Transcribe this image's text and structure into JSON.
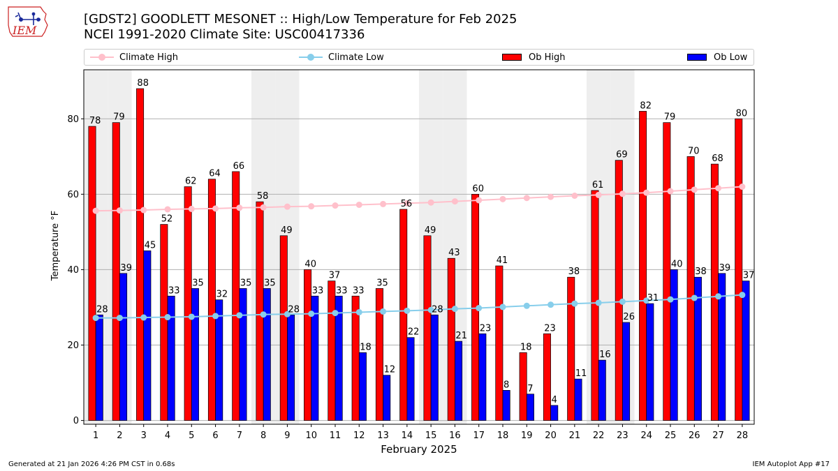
{
  "header": {
    "title_line1": "[GDST2] GOODLETT MESONET :: High/Low Temperature for Feb 2025",
    "title_line2": "NCEI 1991-2020 Climate Site: USC00417336"
  },
  "logo": {
    "text": "IEM"
  },
  "legend": {
    "climate_high": "Climate High",
    "climate_low": "Climate Low",
    "ob_high": "Ob High",
    "ob_low": "Ob Low"
  },
  "colors": {
    "ob_high": "#ff0000",
    "ob_low": "#0000ff",
    "climate_high": "#ffc0cb",
    "climate_low": "#87ceeb",
    "weekend_shade": "#eeeeee",
    "grid": "#b0b0b0"
  },
  "chart_data": {
    "type": "bar",
    "xlabel": "February 2025",
    "ylabel": "Temperature °F",
    "ylim": [
      -1,
      93
    ],
    "yticks": [
      0,
      20,
      40,
      60,
      80
    ],
    "grid": "horizontal",
    "legend_position": "top",
    "categories": [
      "1",
      "2",
      "3",
      "4",
      "5",
      "6",
      "7",
      "8",
      "9",
      "10",
      "11",
      "12",
      "13",
      "14",
      "15",
      "16",
      "17",
      "18",
      "19",
      "20",
      "21",
      "22",
      "23",
      "24",
      "25",
      "26",
      "27",
      "28"
    ],
    "shaded_days": [
      "1",
      "2",
      "8",
      "9",
      "15",
      "16",
      "22",
      "23"
    ],
    "series": [
      {
        "name": "Ob High",
        "type": "bar",
        "values": [
          78,
          79,
          88,
          52,
          62,
          64,
          66,
          58,
          49,
          40,
          37,
          33,
          35,
          56,
          49,
          43,
          60,
          41,
          18,
          23,
          38,
          61,
          69,
          82,
          79,
          70,
          68,
          80
        ]
      },
      {
        "name": "Ob Low",
        "type": "bar",
        "values": [
          28,
          39,
          45,
          33,
          35,
          32,
          35,
          35,
          28,
          33,
          33,
          18,
          12,
          22,
          28,
          21,
          23,
          8,
          7,
          4,
          11,
          16,
          26,
          31,
          40,
          38,
          39,
          37
        ]
      },
      {
        "name": "Climate High",
        "type": "line",
        "values": [
          55.6,
          55.7,
          55.8,
          56.0,
          56.1,
          56.2,
          56.4,
          56.5,
          56.7,
          56.8,
          57.0,
          57.2,
          57.4,
          57.6,
          57.8,
          58.1,
          58.4,
          58.7,
          59.0,
          59.3,
          59.6,
          59.8,
          60.1,
          60.4,
          60.8,
          61.2,
          61.6,
          62.0
        ]
      },
      {
        "name": "Climate Low",
        "type": "line",
        "values": [
          27.2,
          27.2,
          27.3,
          27.4,
          27.5,
          27.7,
          27.9,
          28.1,
          28.2,
          28.3,
          28.5,
          28.7,
          28.9,
          29.1,
          29.3,
          29.6,
          29.8,
          30.1,
          30.4,
          30.7,
          31.0,
          31.2,
          31.5,
          31.8,
          32.1,
          32.5,
          32.9,
          33.3
        ]
      }
    ]
  },
  "footer": {
    "left": "Generated at 21 Jan 2026 4:26 PM CST in 0.68s",
    "right": "IEM Autoplot App #17"
  }
}
